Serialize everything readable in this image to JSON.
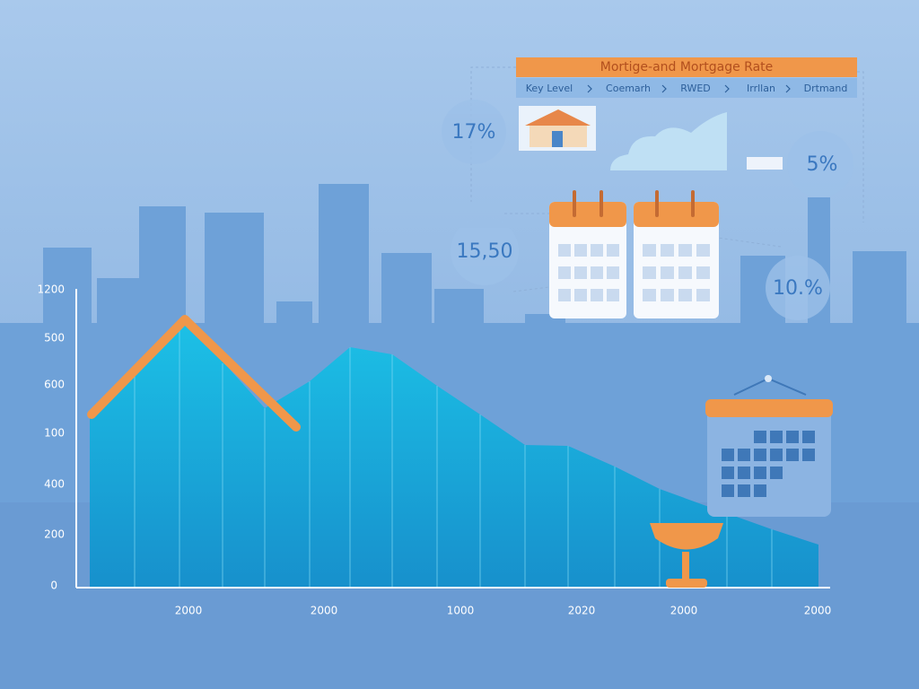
{
  "header": {
    "title": "Mortige-and Mortgage Rate",
    "breadcrumbs": [
      "Key Level",
      "Coemarh",
      "RWED",
      "Irrllan",
      "Drtmand"
    ]
  },
  "bubbles": [
    "17%",
    "15,50",
    "5%",
    "10.%"
  ],
  "y_axis_labels": [
    "1200",
    "500",
    "600",
    "100",
    "400",
    "200",
    "0"
  ],
  "x_axis_labels": [
    "2000",
    "2000",
    "1000",
    "2020",
    "2000",
    "2000"
  ]
}
